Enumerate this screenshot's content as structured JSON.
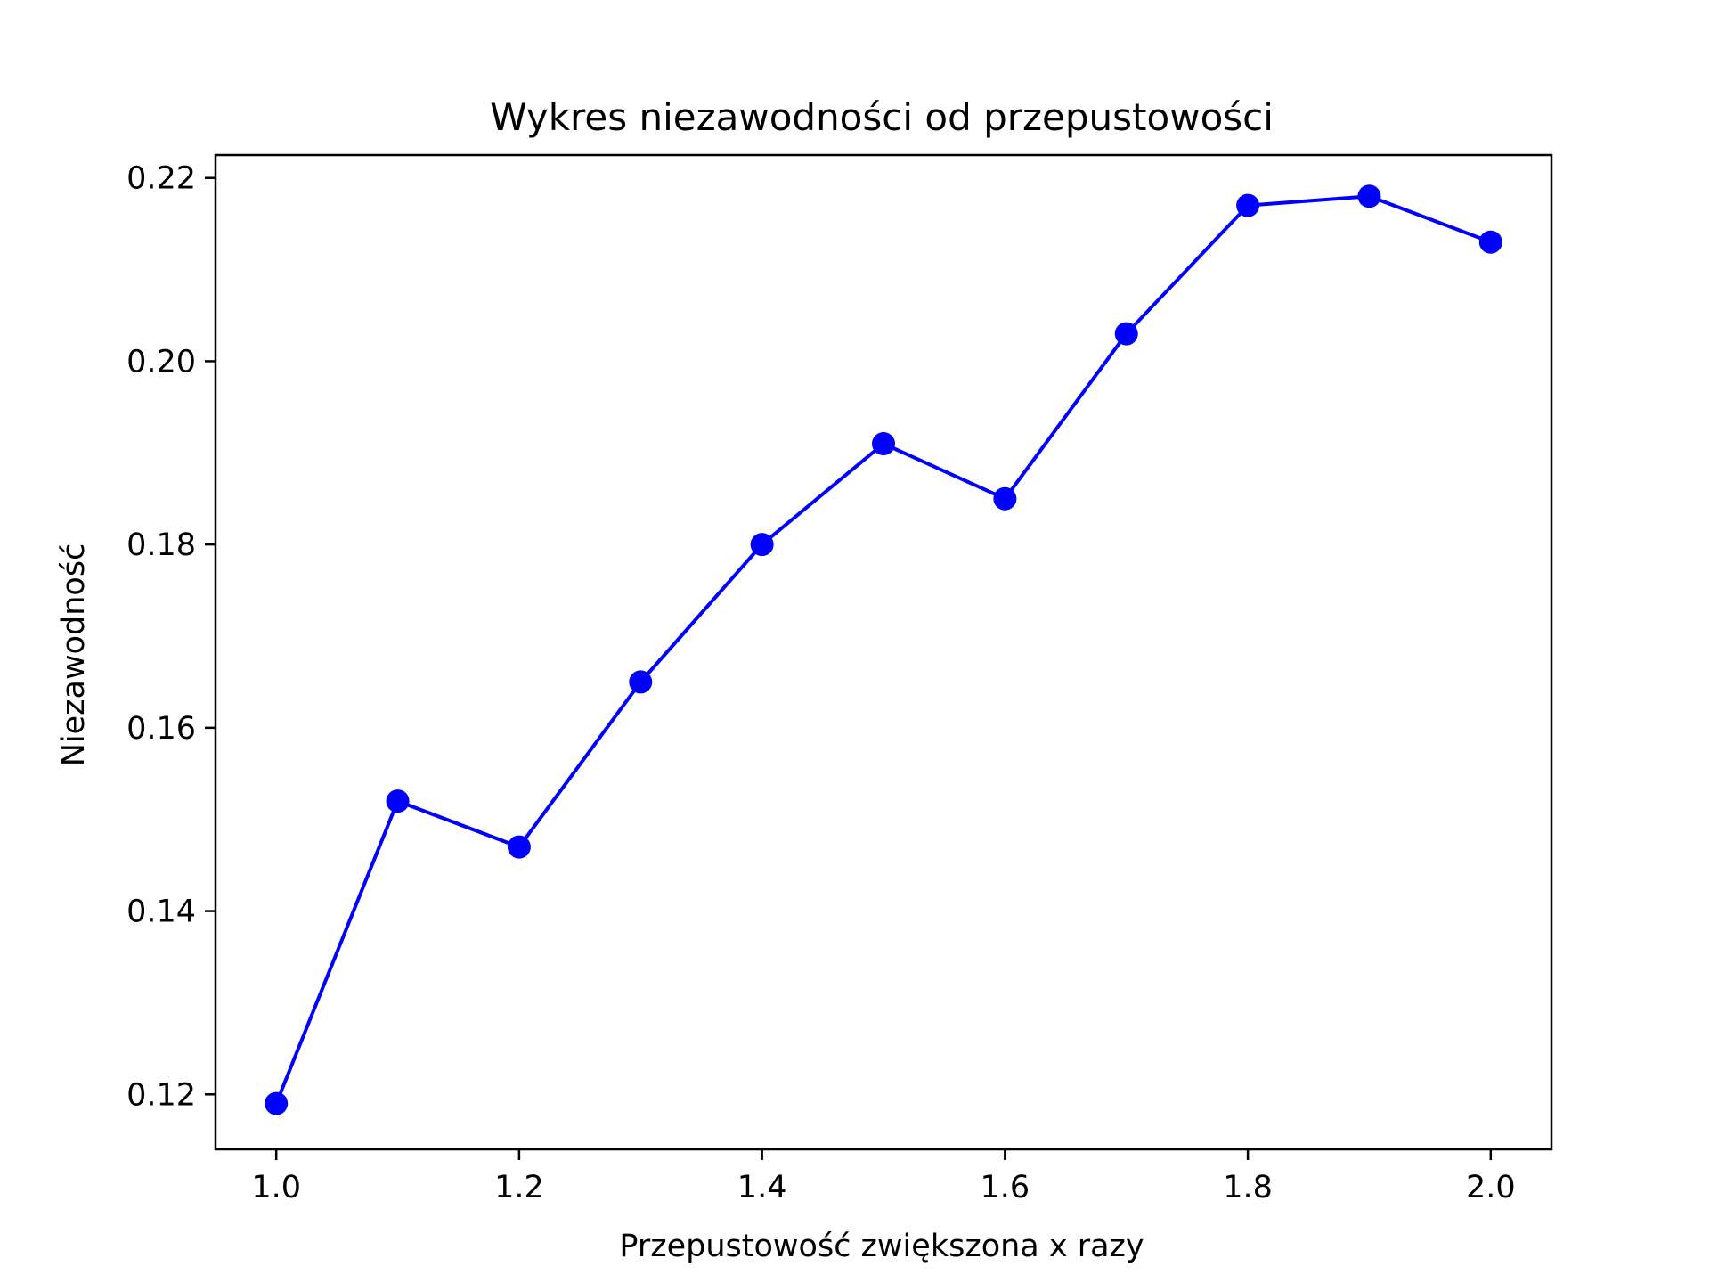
{
  "chart_data": {
    "type": "line",
    "title": "Wykres niezawodności od przepustowości",
    "xlabel": "Przepustowość zwiększona x razy",
    "ylabel": "Niezawodność",
    "xlim": [
      0.95,
      2.05
    ],
    "ylim": [
      0.114,
      0.2225
    ],
    "xticks": [
      1.0,
      1.2,
      1.4,
      1.6,
      1.8,
      2.0
    ],
    "xtick_labels": [
      "1.0",
      "1.2",
      "1.4",
      "1.6",
      "1.8",
      "2.0"
    ],
    "yticks": [
      0.12,
      0.14,
      0.16,
      0.18,
      0.2,
      0.22
    ],
    "ytick_labels": [
      "0.12",
      "0.14",
      "0.16",
      "0.18",
      "0.20",
      "0.22"
    ],
    "grid": false,
    "series": [
      {
        "name": "Niezawodność",
        "color": "#0000ff",
        "marker": "circle",
        "x": [
          1.0,
          1.1,
          1.2,
          1.3,
          1.4,
          1.5,
          1.6,
          1.7,
          1.8,
          1.9,
          2.0
        ],
        "y": [
          0.119,
          0.152,
          0.147,
          0.165,
          0.18,
          0.191,
          0.185,
          0.203,
          0.217,
          0.218,
          0.213
        ]
      }
    ]
  }
}
